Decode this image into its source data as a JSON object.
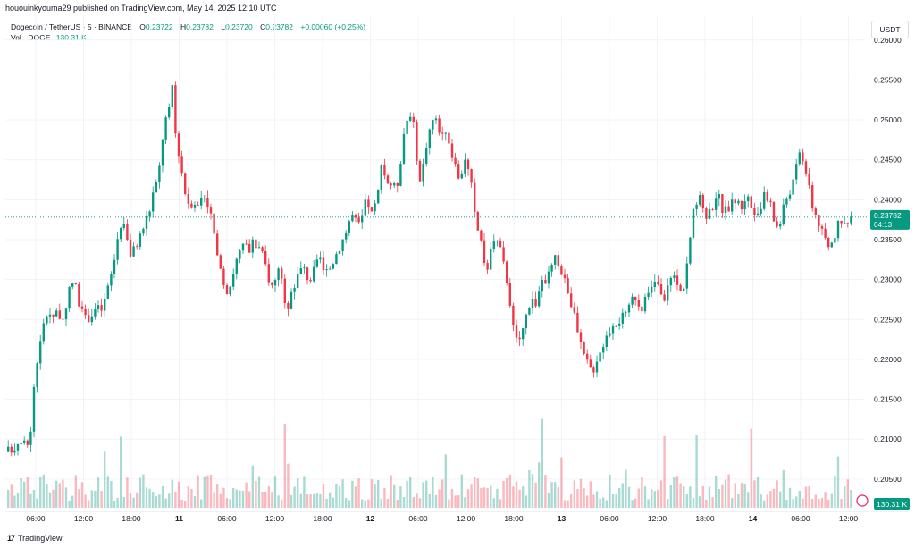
{
  "header": {
    "published_text": "hououinkyouma29 published on TradingView.com, May 14, 2025 12:10 UTC"
  },
  "legend": {
    "symbol": "Dogecoin / TetherUS · 5 · BINANCE",
    "open_label": "O",
    "open": "0.23722",
    "high_label": "H",
    "high": "0.23782",
    "low_label": "L",
    "low": "0.23720",
    "close_label": "C",
    "close": "0.23782",
    "change": "+0.00060 (+0.25%)",
    "volume_label": "Vol · DOGE",
    "volume": "130.31 K"
  },
  "currency_button": "USDT",
  "footer": {
    "brand": "TradingView"
  },
  "colors": {
    "up": "#089981",
    "down": "#f23645",
    "grid": "#f0f3fa",
    "text": "#131722"
  },
  "chart_data": {
    "type": "candlestick",
    "y_ticks": [
      "0.26000",
      "0.25500",
      "0.25000",
      "0.24500",
      "0.24000",
      "0.23500",
      "0.23000",
      "0.22500",
      "0.22000",
      "0.21500",
      "0.21000",
      "0.20500"
    ],
    "ylim": [
      0.2014,
      0.263
    ],
    "x_ticks": [
      "06:00",
      "12:00",
      "18:00",
      "11",
      "06:00",
      "12:00",
      "18:00",
      "12",
      "06:00",
      "12:00",
      "18:00",
      "13",
      "06:00",
      "12:00",
      "18:00",
      "14",
      "06:00",
      "12:00"
    ],
    "current_price": "0.23782",
    "countdown": "04:13",
    "current_volume": "130.31 K",
    "close_path": [
      [
        0,
        0.2085
      ],
      [
        8,
        0.2092
      ],
      [
        16,
        0.2105
      ],
      [
        22,
        0.2098
      ],
      [
        26,
        0.211
      ],
      [
        30,
        0.219
      ],
      [
        34,
        0.2205
      ],
      [
        36,
        0.222
      ],
      [
        40,
        0.2245
      ],
      [
        45,
        0.2263
      ],
      [
        50,
        0.2255
      ],
      [
        55,
        0.2262
      ],
      [
        60,
        0.2248
      ],
      [
        64,
        0.225
      ],
      [
        70,
        0.23
      ],
      [
        76,
        0.229
      ],
      [
        82,
        0.2258
      ],
      [
        86,
        0.225
      ],
      [
        92,
        0.2255
      ],
      [
        98,
        0.2264
      ],
      [
        105,
        0.2262
      ],
      [
        112,
        0.229
      ],
      [
        118,
        0.232
      ],
      [
        122,
        0.235
      ],
      [
        127,
        0.2375
      ],
      [
        132,
        0.2365
      ],
      [
        136,
        0.233
      ],
      [
        140,
        0.2336
      ],
      [
        146,
        0.235
      ],
      [
        152,
        0.2368
      ],
      [
        158,
        0.2386
      ],
      [
        162,
        0.2408
      ],
      [
        166,
        0.242
      ],
      [
        170,
        0.2445
      ],
      [
        173,
        0.248
      ],
      [
        176,
        0.25
      ],
      [
        180,
        0.251
      ],
      [
        182,
        0.257
      ],
      [
        185,
        0.252
      ],
      [
        188,
        0.247
      ],
      [
        192,
        0.2455
      ],
      [
        196,
        0.242
      ],
      [
        200,
        0.24
      ],
      [
        204,
        0.2395
      ],
      [
        208,
        0.24
      ],
      [
        212,
        0.239
      ],
      [
        218,
        0.241
      ],
      [
        222,
        0.24
      ],
      [
        226,
        0.2385
      ],
      [
        230,
        0.236
      ],
      [
        234,
        0.2325
      ],
      [
        238,
        0.2305
      ],
      [
        242,
        0.2295
      ],
      [
        246,
        0.2285
      ],
      [
        250,
        0.23
      ],
      [
        254,
        0.232
      ],
      [
        258,
        0.233
      ],
      [
        262,
        0.234
      ],
      [
        266,
        0.2342
      ],
      [
        270,
        0.2335
      ],
      [
        274,
        0.2345
      ],
      [
        278,
        0.234
      ],
      [
        282,
        0.2338
      ],
      [
        286,
        0.2325
      ],
      [
        290,
        0.231
      ],
      [
        294,
        0.229
      ],
      [
        298,
        0.2295
      ],
      [
        302,
        0.232
      ],
      [
        306,
        0.23
      ],
      [
        310,
        0.226
      ],
      [
        314,
        0.227
      ],
      [
        318,
        0.229
      ],
      [
        322,
        0.23
      ],
      [
        326,
        0.231
      ],
      [
        330,
        0.2315
      ],
      [
        334,
        0.2305
      ],
      [
        338,
        0.23
      ],
      [
        342,
        0.231
      ],
      [
        346,
        0.232
      ],
      [
        350,
        0.233
      ],
      [
        354,
        0.23
      ],
      [
        358,
        0.231
      ],
      [
        362,
        0.232
      ],
      [
        366,
        0.233
      ],
      [
        370,
        0.234
      ],
      [
        374,
        0.235
      ],
      [
        378,
        0.236
      ],
      [
        382,
        0.2375
      ],
      [
        386,
        0.238
      ],
      [
        390,
        0.237
      ],
      [
        394,
        0.2365
      ],
      [
        398,
        0.239
      ],
      [
        402,
        0.24
      ],
      [
        406,
        0.238
      ],
      [
        410,
        0.239
      ],
      [
        414,
        0.241
      ],
      [
        418,
        0.244
      ],
      [
        422,
        0.243
      ],
      [
        426,
        0.242
      ],
      [
        430,
        0.242
      ],
      [
        434,
        0.241
      ],
      [
        438,
        0.244
      ],
      [
        442,
        0.248
      ],
      [
        446,
        0.25
      ],
      [
        450,
        0.251
      ],
      [
        454,
        0.249
      ],
      [
        458,
        0.243
      ],
      [
        462,
        0.242
      ],
      [
        466,
        0.246
      ],
      [
        470,
        0.248
      ],
      [
        474,
        0.25
      ],
      [
        478,
        0.25
      ],
      [
        482,
        0.249
      ],
      [
        486,
        0.248
      ],
      [
        490,
        0.249
      ],
      [
        494,
        0.247
      ],
      [
        498,
        0.245
      ],
      [
        502,
        0.243
      ],
      [
        506,
        0.242
      ],
      [
        510,
        0.246
      ],
      [
        514,
        0.244
      ],
      [
        518,
        0.242
      ],
      [
        522,
        0.238
      ],
      [
        526,
        0.236
      ],
      [
        530,
        0.235
      ],
      [
        534,
        0.23
      ],
      [
        538,
        0.233
      ],
      [
        542,
        0.2345
      ],
      [
        546,
        0.235
      ],
      [
        550,
        0.234
      ],
      [
        554,
        0.232
      ],
      [
        558,
        0.23
      ],
      [
        562,
        0.227
      ],
      [
        566,
        0.223
      ],
      [
        570,
        0.222
      ],
      [
        574,
        0.223
      ],
      [
        578,
        0.2245
      ],
      [
        582,
        0.227
      ],
      [
        586,
        0.2275
      ],
      [
        590,
        0.227
      ],
      [
        594,
        0.2285
      ],
      [
        598,
        0.2295
      ],
      [
        602,
        0.23
      ],
      [
        606,
        0.231
      ],
      [
        610,
        0.232
      ],
      [
        614,
        0.233
      ],
      [
        618,
        0.231
      ],
      [
        622,
        0.23
      ],
      [
        626,
        0.229
      ],
      [
        630,
        0.227
      ],
      [
        634,
        0.225
      ],
      [
        638,
        0.223
      ],
      [
        642,
        0.221
      ],
      [
        646,
        0.22
      ],
      [
        650,
        0.219
      ],
      [
        654,
        0.2185
      ],
      [
        658,
        0.22
      ],
      [
        662,
        0.221
      ],
      [
        666,
        0.222
      ],
      [
        670,
        0.223
      ],
      [
        674,
        0.224
      ],
      [
        678,
        0.225
      ],
      [
        682,
        0.2245
      ],
      [
        686,
        0.2255
      ],
      [
        690,
        0.225
      ],
      [
        694,
        0.226
      ],
      [
        698,
        0.2275
      ],
      [
        702,
        0.228
      ],
      [
        706,
        0.227
      ],
      [
        710,
        0.2265
      ],
      [
        714,
        0.2275
      ],
      [
        718,
        0.2285
      ],
      [
        722,
        0.229
      ],
      [
        726,
        0.23
      ],
      [
        730,
        0.228
      ],
      [
        734,
        0.227
      ],
      [
        738,
        0.229
      ],
      [
        742,
        0.231
      ],
      [
        746,
        0.23
      ],
      [
        750,
        0.229
      ],
      [
        754,
        0.228
      ],
      [
        758,
        0.231
      ],
      [
        762,
        0.234
      ],
      [
        766,
        0.238
      ],
      [
        770,
        0.2395
      ],
      [
        774,
        0.24
      ],
      [
        778,
        0.239
      ],
      [
        782,
        0.238
      ],
      [
        786,
        0.2385
      ],
      [
        790,
        0.24
      ],
      [
        794,
        0.241
      ],
      [
        798,
        0.239
      ],
      [
        802,
        0.2385
      ],
      [
        806,
        0.239
      ],
      [
        810,
        0.2395
      ],
      [
        814,
        0.24
      ],
      [
        818,
        0.2395
      ],
      [
        822,
        0.239
      ],
      [
        826,
        0.241
      ],
      [
        830,
        0.2395
      ],
      [
        834,
        0.2385
      ],
      [
        838,
        0.2375
      ],
      [
        842,
        0.238
      ],
      [
        846,
        0.241
      ],
      [
        850,
        0.24
      ],
      [
        854,
        0.239
      ],
      [
        858,
        0.237
      ],
      [
        862,
        0.2365
      ],
      [
        866,
        0.238
      ],
      [
        870,
        0.24
      ],
      [
        874,
        0.241
      ],
      [
        878,
        0.242
      ],
      [
        882,
        0.244
      ],
      [
        886,
        0.246
      ],
      [
        890,
        0.245
      ],
      [
        894,
        0.243
      ],
      [
        898,
        0.24
      ],
      [
        902,
        0.2385
      ],
      [
        906,
        0.2375
      ],
      [
        910,
        0.236
      ],
      [
        914,
        0.235
      ],
      [
        918,
        0.234
      ],
      [
        922,
        0.235
      ],
      [
        926,
        0.236
      ],
      [
        930,
        0.237
      ],
      [
        934,
        0.2365
      ],
      [
        938,
        0.2375
      ],
      [
        942,
        0.238
      ],
      [
        946,
        0.2378
      ]
    ]
  }
}
